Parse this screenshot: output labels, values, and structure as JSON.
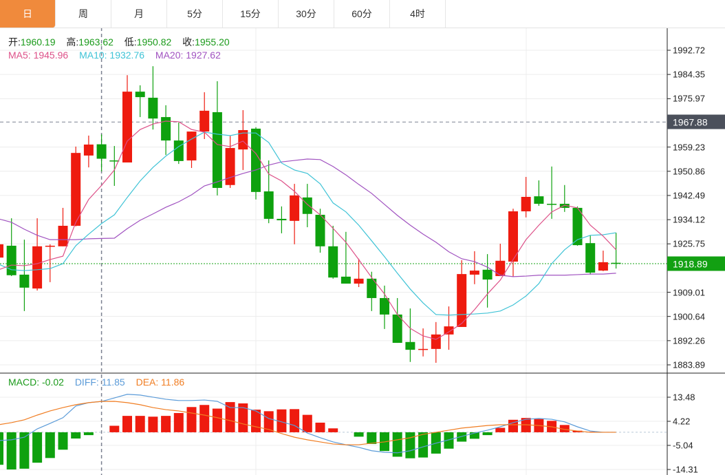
{
  "tabs": [
    {
      "label": "日",
      "active": true
    },
    {
      "label": "周"
    },
    {
      "label": "月"
    },
    {
      "label": "5分"
    },
    {
      "label": "15分"
    },
    {
      "label": "30分"
    },
    {
      "label": "60分"
    },
    {
      "label": "4时"
    }
  ],
  "ohlc_legend": {
    "open_label": "开:",
    "open": "1960.19",
    "high_label": "高:",
    "high": "1963.62",
    "low_label": "低:",
    "low": "1950.82",
    "close_label": "收:",
    "close": "1955.20"
  },
  "ma_legend": {
    "ma5": "MA5: 1945.96",
    "ma10": "MA10: 1932.76",
    "ma20": "MA20: 1927.62"
  },
  "macd_legend": {
    "macd": "MACD: -0.02",
    "diff": "DIFF: 11.85",
    "dea": "DEA: 11.86"
  },
  "price_axis": [
    "1992.72",
    "1984.35",
    "1975.97",
    "1959.23",
    "1950.86",
    "1942.49",
    "1934.12",
    "1925.75",
    "1909.01",
    "1900.64",
    "1892.26",
    "1883.89"
  ],
  "macd_axis": [
    "13.48",
    "4.22",
    "-5.04",
    "-14.31"
  ],
  "crosshair_price": "1967.88",
  "last_price": "1918.89",
  "colors": {
    "up": "#ee1b0f",
    "down": "#0ea10e",
    "ma5": "#dd5088",
    "ma10": "#3fc3d6",
    "ma20": "#a052c0",
    "diff": "#5b9bd8",
    "dea": "#f07d22",
    "tab_active": "#f08a3c"
  },
  "chart_data": {
    "type": "candlestick",
    "price_range": [
      1883.89,
      1992.72
    ],
    "crosshair_index": 8,
    "candles": [
      [
        1921.0,
        1926.5,
        1920.5,
        1925.6
      ],
      [
        1925.1,
        1934.6,
        1914.6,
        1914.9
      ],
      [
        1915.1,
        1927.2,
        1902.5,
        1910.6
      ],
      [
        1910.3,
        1934.6,
        1909.6,
        1924.9
      ],
      [
        1924.9,
        1925.6,
        1912.5,
        1925.1
      ],
      [
        1924.9,
        1938.2,
        1924.9,
        1932.0
      ],
      [
        1932.0,
        1959.4,
        1931.8,
        1957.2
      ],
      [
        1956.3,
        1963.2,
        1952.2,
        1960.1
      ],
      [
        1960.19,
        1963.62,
        1950.82,
        1955.2
      ],
      [
        1954.6,
        1959.6,
        1945.8,
        1954.4
      ],
      [
        1953.9,
        1984.1,
        1953.9,
        1978.4
      ],
      [
        1978.4,
        1980.6,
        1969.6,
        1976.5
      ],
      [
        1976.3,
        1987.2,
        1965.3,
        1969.1
      ],
      [
        1969.6,
        1973.7,
        1956.5,
        1961.5
      ],
      [
        1961.5,
        1967.7,
        1953.4,
        1954.4
      ],
      [
        1954.6,
        1964.6,
        1952.0,
        1964.6
      ],
      [
        1964.6,
        1978.2,
        1962.0,
        1971.8
      ],
      [
        1971.3,
        1982.0,
        1942.5,
        1945.1
      ],
      [
        1946.1,
        1963.2,
        1945.1,
        1958.9
      ],
      [
        1958.4,
        1972.0,
        1951.3,
        1965.1
      ],
      [
        1965.6,
        1966.1,
        1941.1,
        1943.7
      ],
      [
        1943.9,
        1954.6,
        1932.9,
        1934.4
      ],
      [
        1934.4,
        1938.7,
        1929.4,
        1933.9
      ],
      [
        1933.7,
        1946.5,
        1925.6,
        1942.5
      ],
      [
        1941.8,
        1946.5,
        1931.5,
        1936.1
      ],
      [
        1935.8,
        1937.9,
        1922.7,
        1924.9
      ],
      [
        1924.9,
        1932.0,
        1913.7,
        1914.1
      ],
      [
        1914.4,
        1929.9,
        1912.0,
        1912.0
      ],
      [
        1912.0,
        1920.6,
        1910.8,
        1913.7
      ],
      [
        1913.7,
        1916.1,
        1902.5,
        1907.0
      ],
      [
        1907.0,
        1911.3,
        1896.3,
        1901.3
      ],
      [
        1901.3,
        1907.0,
        1891.5,
        1891.5
      ],
      [
        1891.8,
        1903.4,
        1884.9,
        1889.1
      ],
      [
        1889.1,
        1896.5,
        1886.8,
        1889.4
      ],
      [
        1889.4,
        1898.7,
        1884.6,
        1894.4
      ],
      [
        1894.4,
        1904.1,
        1889.1,
        1897.2
      ],
      [
        1897.0,
        1920.1,
        1897.0,
        1915.3
      ],
      [
        1915.1,
        1923.2,
        1911.8,
        1916.5
      ],
      [
        1916.8,
        1922.2,
        1903.7,
        1913.4
      ],
      [
        1914.6,
        1925.8,
        1914.6,
        1919.9
      ],
      [
        1919.6,
        1937.9,
        1914.4,
        1937.0
      ],
      [
        1937.0,
        1948.9,
        1934.9,
        1942.0
      ],
      [
        1942.2,
        1947.7,
        1938.9,
        1939.6
      ],
      [
        1939.6,
        1952.5,
        1934.4,
        1939.4
      ],
      [
        1939.6,
        1946.1,
        1936.8,
        1938.2
      ],
      [
        1938.2,
        1938.7,
        1925.1,
        1925.3
      ],
      [
        1926.0,
        1928.7,
        1915.1,
        1915.8
      ],
      [
        1916.5,
        1923.4,
        1916.3,
        1919.4
      ],
      [
        1919.2,
        1929.6,
        1917.2,
        1918.89
      ]
    ],
    "ma5": [
      1916.8,
      1918.4,
      1918.2,
      1918.9,
      1920.3,
      1921.5,
      1933.2,
      1941.1,
      1945.96,
      1951.3,
      1961.3,
      1965.3,
      1967.2,
      1968.2,
      1968.0,
      1965.3,
      1964.4,
      1960.1,
      1959.4,
      1961.3,
      1957.0,
      1949.9,
      1947.5,
      1943.9,
      1939.4,
      1935.8,
      1931.1,
      1926.3,
      1920.3,
      1914.1,
      1908.4,
      1901.3,
      1896.5,
      1893.9,
      1892.7,
      1895.3,
      1898.2,
      1903.0,
      1908.4,
      1913.2,
      1920.3,
      1927.2,
      1932.2,
      1936.8,
      1939.1,
      1938.2,
      1932.2,
      1928.4,
      1923.7
    ],
    "ma10": [
      1918.7,
      1916.8,
      1916.5,
      1916.8,
      1917.2,
      1918.9,
      1925.1,
      1929.1,
      1932.76,
      1935.8,
      1941.8,
      1947.5,
      1952.2,
      1956.1,
      1959.4,
      1962.0,
      1964.4,
      1963.7,
      1963.2,
      1964.1,
      1964.1,
      1960.8,
      1953.7,
      1951.3,
      1950.1,
      1946.5,
      1939.9,
      1936.8,
      1932.2,
      1926.8,
      1921.3,
      1915.6,
      1910.1,
      1905.3,
      1901.3,
      1901.1,
      1901.3,
      1901.5,
      1901.8,
      1902.5,
      1904.6,
      1907.7,
      1912.0,
      1918.9,
      1923.7,
      1927.2,
      1928.7,
      1928.9,
      1929.6
    ],
    "ma20": [
      1934.4,
      1933.2,
      1930.8,
      1928.7,
      1927.2,
      1927.2,
      1927.2,
      1927.5,
      1927.62,
      1927.7,
      1931.0,
      1933.9,
      1936.1,
      1938.4,
      1940.3,
      1942.7,
      1945.8,
      1947.2,
      1948.7,
      1950.1,
      1951.3,
      1953.0,
      1954.1,
      1954.6,
      1955.1,
      1954.9,
      1952.5,
      1949.6,
      1946.3,
      1943.2,
      1939.4,
      1935.6,
      1932.2,
      1929.1,
      1926.3,
      1923.0,
      1920.6,
      1919.6,
      1917.7,
      1914.9,
      1914.4,
      1914.6,
      1914.9,
      1914.9,
      1914.9,
      1915.1,
      1915.3,
      1915.3,
      1915.6
    ],
    "macd_range": [
      -14.31,
      13.48
    ],
    "macd_hist": [
      -12.5,
      -14.3,
      -14.0,
      -11.7,
      -9.9,
      -6.7,
      -2.4,
      -1.1,
      -0.02,
      2.5,
      6.3,
      6.3,
      6.0,
      6.3,
      7.4,
      9.7,
      10.5,
      9.1,
      11.6,
      11.1,
      8.7,
      8.1,
      8.8,
      8.9,
      6.7,
      3.7,
      1.5,
      0,
      -1.7,
      -4.5,
      -7.2,
      -9.4,
      -10.0,
      -9.7,
      -8.2,
      -6.3,
      -3.6,
      -2.5,
      -1.1,
      1.7,
      4.8,
      5.5,
      5.1,
      4.4,
      2.8,
      0.6,
      0.2,
      0.1,
      -0.02
    ],
    "diff": [
      -3.2,
      -2.9,
      -1.9,
      1.3,
      3.4,
      5.6,
      10.1,
      11.4,
      11.85,
      13.2,
      14.6,
      14.3,
      13.5,
      12.7,
      12.2,
      12.2,
      12.4,
      11.9,
      9.5,
      9.5,
      8.2,
      5.3,
      4.0,
      2.6,
      -0.3,
      -2.1,
      -3.7,
      -4.8,
      -5.8,
      -7.1,
      -7.7,
      -7.9,
      -7.1,
      -5.6,
      -4.2,
      -2.9,
      -1.6,
      -0.3,
      0.8,
      2.1,
      3.7,
      5.0,
      5.3,
      5.0,
      4.0,
      2.1,
      0.5,
      0,
      0
    ],
    "dea": [
      2.9,
      3.7,
      4.8,
      6.6,
      8.2,
      9.5,
      10.6,
      11.4,
      11.86,
      11.9,
      11.4,
      10.6,
      9.5,
      8.7,
      8.2,
      7.4,
      6.6,
      5.6,
      4.5,
      3.2,
      2.1,
      1.1,
      -0.5,
      -1.9,
      -2.9,
      -3.7,
      -4.5,
      -4.8,
      -4.8,
      -4.2,
      -3.7,
      -2.9,
      -2.1,
      -0.8,
      0,
      0.8,
      1.6,
      2.1,
      2.6,
      2.9,
      2.9,
      2.9,
      2.6,
      2.1,
      1.1,
      0.5,
      0,
      0,
      0
    ]
  }
}
